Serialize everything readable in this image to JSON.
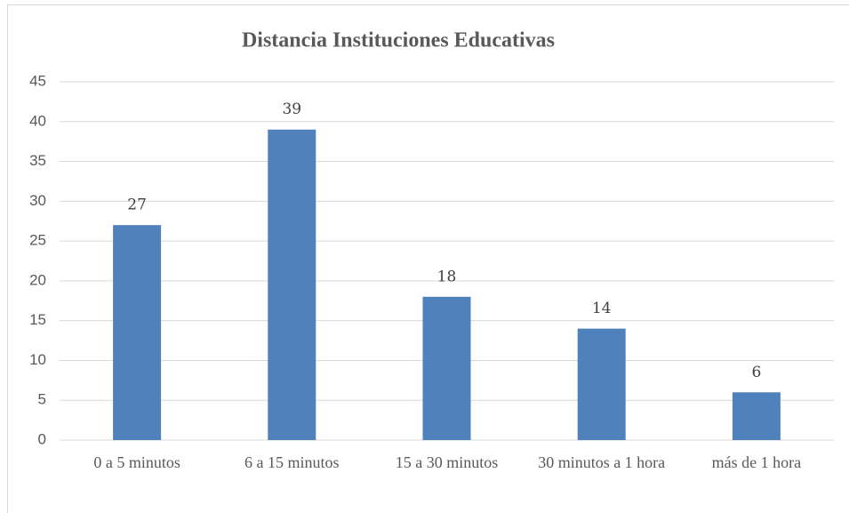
{
  "chart_data": {
    "type": "bar",
    "title": "Distancia Instituciones Educativas",
    "categories": [
      "0 a 5 minutos",
      "6 a 15 minutos",
      "15 a 30 minutos",
      "30 minutos a 1 hora",
      "más de 1 hora"
    ],
    "values": [
      27,
      39,
      18,
      14,
      6
    ],
    "color": "#4f81bd",
    "ylim": [
      0,
      45
    ],
    "yticks": [
      0,
      5,
      10,
      15,
      20,
      25,
      30,
      35,
      40,
      45
    ],
    "grid": true
  }
}
